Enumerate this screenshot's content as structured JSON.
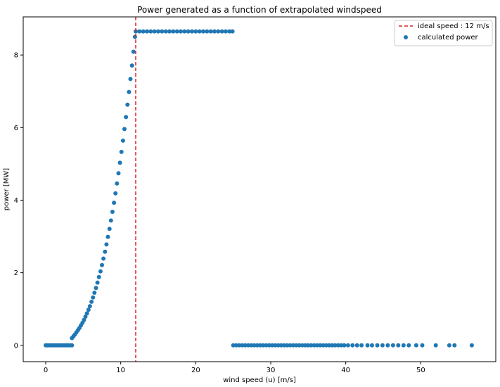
{
  "chart_data": {
    "type": "scatter",
    "title": "Power generated as a function of extrapolated windspeed",
    "xlabel": "wind speed (u) [m/s]",
    "ylabel": "power [MW]",
    "xlim": [
      -3,
      60
    ],
    "ylim": [
      -0.45,
      9.05
    ],
    "xticks": [
      0,
      10,
      20,
      30,
      40,
      50
    ],
    "yticks": [
      0,
      2,
      4,
      6,
      8
    ],
    "grid": false,
    "legend_position": "top-right",
    "legend": [
      "ideal speed : 12 m/s",
      "calculated power"
    ],
    "series": [
      {
        "name": "calculated power",
        "kind": "scatter",
        "color": "#1f77b4",
        "points": [
          [
            0.0,
            0.0
          ],
          [
            0.25,
            0.0
          ],
          [
            0.5,
            0.0
          ],
          [
            0.75,
            0.0
          ],
          [
            1.0,
            0.0
          ],
          [
            1.25,
            0.0
          ],
          [
            1.5,
            0.0
          ],
          [
            1.75,
            0.0
          ],
          [
            2.0,
            0.0
          ],
          [
            2.25,
            0.0
          ],
          [
            2.5,
            0.0
          ],
          [
            2.75,
            0.0
          ],
          [
            3.0,
            0.0
          ],
          [
            3.25,
            0.0
          ],
          [
            3.5,
            0.0
          ],
          [
            3.5,
            0.2
          ],
          [
            3.7,
            0.25
          ],
          [
            3.9,
            0.3
          ],
          [
            4.1,
            0.36
          ],
          [
            4.3,
            0.42
          ],
          [
            4.5,
            0.48
          ],
          [
            4.7,
            0.55
          ],
          [
            4.9,
            0.62
          ],
          [
            5.1,
            0.7
          ],
          [
            5.3,
            0.79
          ],
          [
            5.5,
            0.88
          ],
          [
            5.7,
            0.98
          ],
          [
            5.9,
            1.08
          ],
          [
            6.1,
            1.2
          ],
          [
            6.3,
            1.32
          ],
          [
            6.5,
            1.45
          ],
          [
            6.7,
            1.58
          ],
          [
            6.9,
            1.73
          ],
          [
            7.1,
            1.88
          ],
          [
            7.3,
            2.04
          ],
          [
            7.5,
            2.21
          ],
          [
            7.7,
            2.39
          ],
          [
            7.9,
            2.58
          ],
          [
            8.1,
            2.78
          ],
          [
            8.3,
            2.99
          ],
          [
            8.5,
            3.21
          ],
          [
            8.7,
            3.44
          ],
          [
            8.9,
            3.68
          ],
          [
            9.1,
            3.93
          ],
          [
            9.3,
            4.19
          ],
          [
            9.5,
            4.46
          ],
          [
            9.7,
            4.74
          ],
          [
            9.9,
            5.03
          ],
          [
            10.1,
            5.33
          ],
          [
            10.3,
            5.64
          ],
          [
            10.5,
            5.96
          ],
          [
            10.7,
            6.29
          ],
          [
            10.9,
            6.63
          ],
          [
            11.1,
            6.98
          ],
          [
            11.3,
            7.34
          ],
          [
            11.5,
            7.71
          ],
          [
            11.7,
            8.09
          ],
          [
            11.9,
            8.5
          ],
          [
            12.0,
            8.65
          ],
          [
            12.5,
            8.65
          ],
          [
            13.0,
            8.65
          ],
          [
            13.5,
            8.65
          ],
          [
            14.0,
            8.65
          ],
          [
            14.5,
            8.65
          ],
          [
            15.0,
            8.65
          ],
          [
            15.5,
            8.65
          ],
          [
            16.0,
            8.65
          ],
          [
            16.5,
            8.65
          ],
          [
            17.0,
            8.65
          ],
          [
            17.5,
            8.65
          ],
          [
            18.0,
            8.65
          ],
          [
            18.5,
            8.65
          ],
          [
            19.0,
            8.65
          ],
          [
            19.5,
            8.65
          ],
          [
            20.0,
            8.65
          ],
          [
            20.5,
            8.65
          ],
          [
            21.0,
            8.65
          ],
          [
            21.5,
            8.65
          ],
          [
            22.0,
            8.65
          ],
          [
            22.5,
            8.65
          ],
          [
            23.0,
            8.65
          ],
          [
            23.5,
            8.65
          ],
          [
            24.0,
            8.65
          ],
          [
            24.5,
            8.65
          ],
          [
            24.9,
            8.65
          ],
          [
            25.0,
            0.0
          ],
          [
            25.4,
            0.0
          ],
          [
            25.8,
            0.0
          ],
          [
            26.2,
            0.0
          ],
          [
            26.6,
            0.0
          ],
          [
            27.0,
            0.0
          ],
          [
            27.4,
            0.0
          ],
          [
            27.8,
            0.0
          ],
          [
            28.2,
            0.0
          ],
          [
            28.6,
            0.0
          ],
          [
            29.0,
            0.0
          ],
          [
            29.4,
            0.0
          ],
          [
            29.8,
            0.0
          ],
          [
            30.2,
            0.0
          ],
          [
            30.6,
            0.0
          ],
          [
            31.0,
            0.0
          ],
          [
            31.4,
            0.0
          ],
          [
            31.8,
            0.0
          ],
          [
            32.2,
            0.0
          ],
          [
            32.6,
            0.0
          ],
          [
            33.0,
            0.0
          ],
          [
            33.4,
            0.0
          ],
          [
            33.8,
            0.0
          ],
          [
            34.2,
            0.0
          ],
          [
            34.6,
            0.0
          ],
          [
            35.0,
            0.0
          ],
          [
            35.4,
            0.0
          ],
          [
            35.8,
            0.0
          ],
          [
            36.2,
            0.0
          ],
          [
            36.6,
            0.0
          ],
          [
            37.0,
            0.0
          ],
          [
            37.4,
            0.0
          ],
          [
            37.8,
            0.0
          ],
          [
            38.2,
            0.0
          ],
          [
            38.6,
            0.0
          ],
          [
            39.0,
            0.0
          ],
          [
            39.4,
            0.0
          ],
          [
            39.8,
            0.0
          ],
          [
            40.3,
            0.0
          ],
          [
            40.9,
            0.0
          ],
          [
            41.5,
            0.0
          ],
          [
            42.1,
            0.0
          ],
          [
            42.9,
            0.0
          ],
          [
            43.5,
            0.0
          ],
          [
            44.2,
            0.0
          ],
          [
            44.9,
            0.0
          ],
          [
            45.6,
            0.0
          ],
          [
            46.3,
            0.0
          ],
          [
            47.0,
            0.0
          ],
          [
            47.7,
            0.0
          ],
          [
            48.4,
            0.0
          ],
          [
            49.4,
            0.0
          ],
          [
            50.2,
            0.0
          ],
          [
            52.0,
            0.0
          ],
          [
            53.8,
            0.0
          ],
          [
            54.5,
            0.0
          ],
          [
            56.8,
            0.0
          ]
        ]
      },
      {
        "name": "ideal speed : 12 m/s",
        "kind": "vline",
        "x": 12,
        "color": "#d62728",
        "style": "dashed"
      }
    ]
  }
}
